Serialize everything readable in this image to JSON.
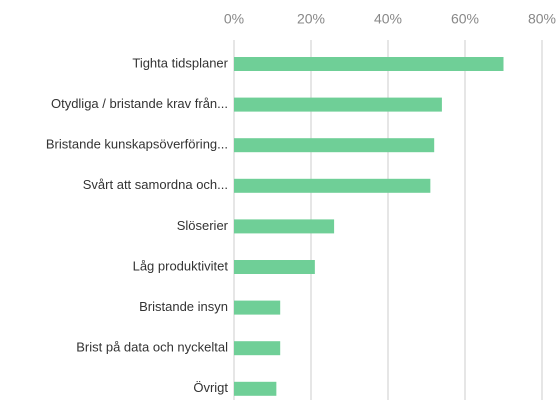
{
  "chart_data": {
    "type": "barh",
    "categories": [
      "Tighta tidsplaner",
      "Otydliga / bristande krav från...",
      "Bristande kunskapsöverföring...",
      "Svårt att samordna och...",
      "Slöserier",
      "Låg produktivitet",
      "Bristande insyn",
      "Brist på data och nyckeltal",
      "Övrigt"
    ],
    "values": [
      70,
      54,
      52,
      51,
      26,
      21,
      12,
      12,
      11
    ],
    "color": "#6fcf97",
    "xlim": [
      0,
      80
    ],
    "xticks": [
      {
        "value": 0,
        "label": "0%"
      },
      {
        "value": 20,
        "label": "20%"
      },
      {
        "value": 40,
        "label": "40%"
      },
      {
        "value": 60,
        "label": "60%"
      },
      {
        "value": 80,
        "label": "80%"
      }
    ],
    "grid": true
  }
}
